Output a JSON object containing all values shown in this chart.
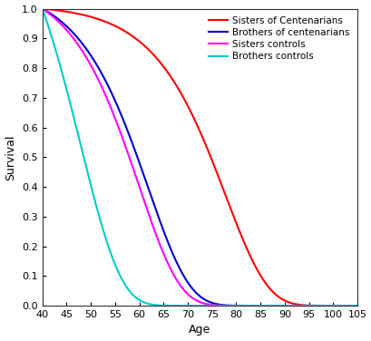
{
  "title": "",
  "xlabel": "Age",
  "ylabel": "Survival",
  "xlim": [
    40,
    105
  ],
  "ylim": [
    0.0,
    1.0
  ],
  "xticks": [
    40,
    45,
    50,
    55,
    60,
    65,
    70,
    75,
    80,
    85,
    90,
    95,
    100,
    105
  ],
  "yticks": [
    0.0,
    0.1,
    0.2,
    0.3,
    0.4,
    0.5,
    0.6,
    0.7,
    0.8,
    0.9,
    1.0
  ],
  "legend": [
    {
      "label": "Sisters of Centenarians",
      "color": "#ff0000"
    },
    {
      "label": "Brothers of centenarians",
      "color": "#0000cc"
    },
    {
      "label": "Sisters controls",
      "color": "#ff00ff"
    },
    {
      "label": "Brothers controls",
      "color": "#00cccc"
    }
  ],
  "curves": {
    "sisters_centenarians": {
      "b": 1.5e-05,
      "c": 0.115,
      "color": "#ff0000",
      "lw": 1.5
    },
    "brothers_centenarians": {
      "b": 8e-05,
      "c": 0.118,
      "color": "#0000cc",
      "lw": 1.5
    },
    "sisters_controls": {
      "b": 9e-05,
      "c": 0.12,
      "color": "#ff00ff",
      "lw": 1.5
    },
    "brothers_controls": {
      "b": 0.00035,
      "c": 0.122,
      "color": "#00cccc",
      "lw": 1.5
    }
  },
  "background_color": "#ffffff",
  "figsize": [
    4.1,
    3.76
  ],
  "dpi": 100
}
